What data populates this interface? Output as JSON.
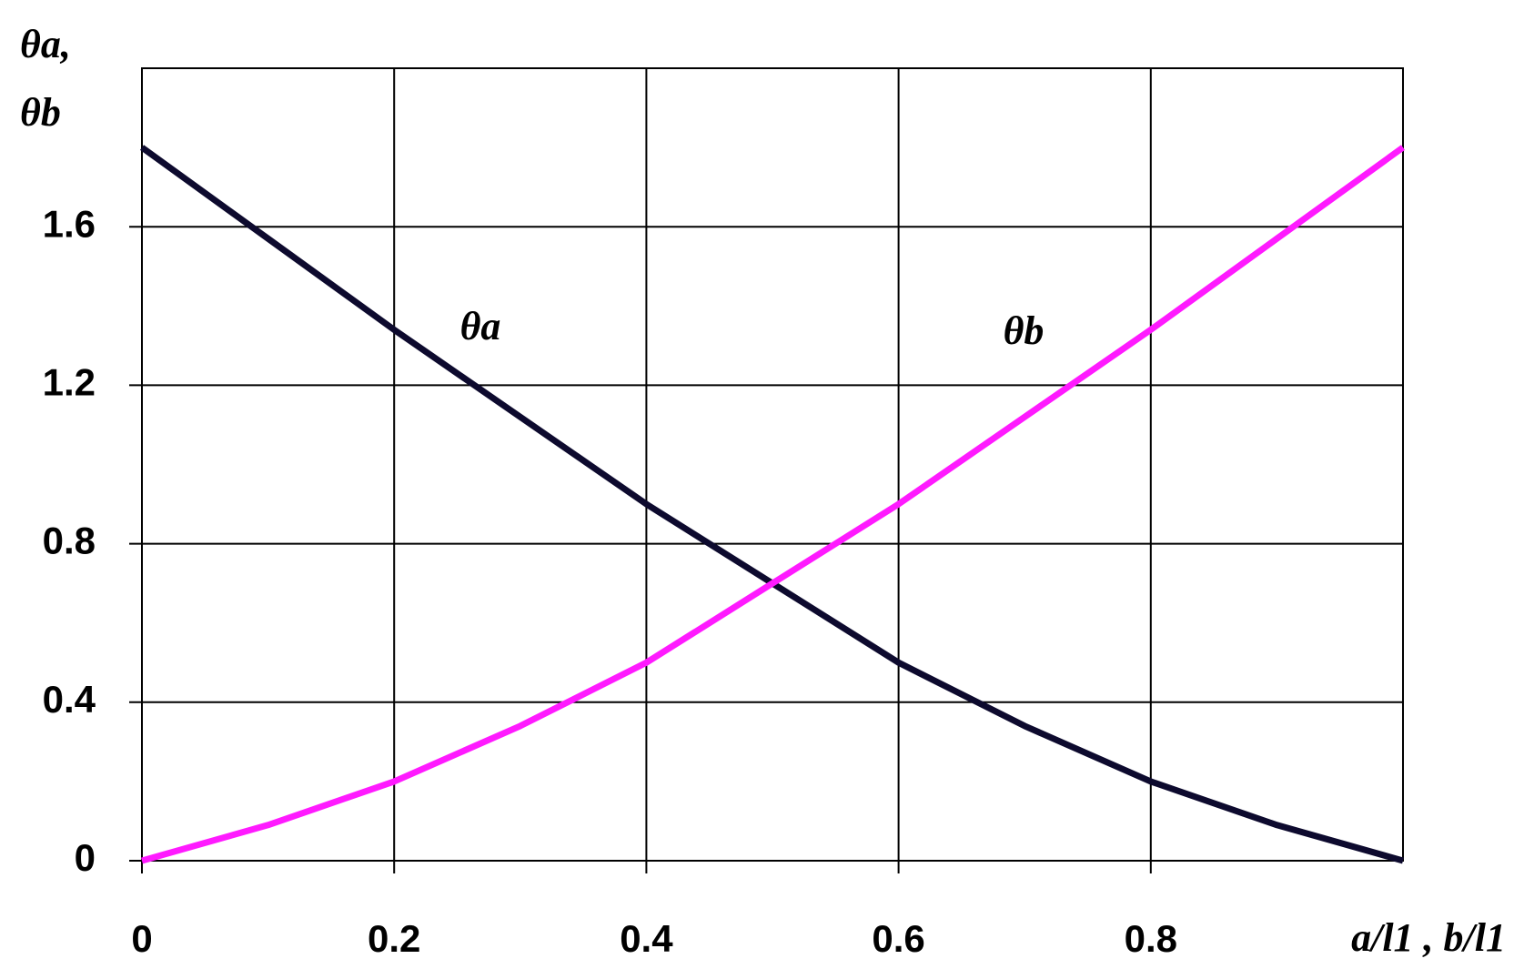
{
  "chart_data": {
    "type": "line",
    "x_label": "a/l1 , b/l1",
    "y_label_lines": [
      "θa,",
      "θb"
    ],
    "x": [
      0,
      0.1,
      0.2,
      0.3,
      0.4,
      0.5,
      0.6,
      0.7,
      0.8,
      0.9,
      1
    ],
    "series": [
      {
        "name": "θa",
        "color": "#0d0a2e",
        "values": [
          1.8,
          1.57,
          1.34,
          1.12,
          0.9,
          0.7,
          0.5,
          0.34,
          0.2,
          0.09,
          0
        ]
      },
      {
        "name": "θb",
        "color": "#ff1aff",
        "values": [
          0,
          0.09,
          0.2,
          0.34,
          0.5,
          0.7,
          0.9,
          1.12,
          1.34,
          1.57,
          1.8
        ]
      }
    ],
    "xlim": [
      0,
      1
    ],
    "xticks": [
      0,
      0.2,
      0.4,
      0.6,
      0.8
    ],
    "ylim": [
      0,
      2
    ],
    "yticks": [
      0,
      0.4,
      0.8,
      1.2,
      1.6
    ],
    "grid": true
  }
}
